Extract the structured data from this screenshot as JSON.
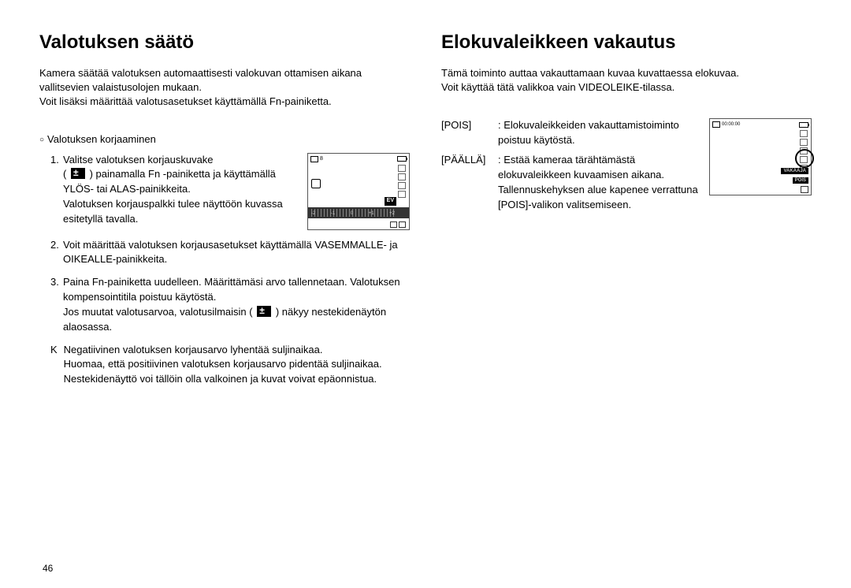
{
  "page_number": "46",
  "colors": {
    "text": "#000000",
    "background": "#ffffff",
    "lcd_border": "#555555",
    "lcd_dark": "#333333"
  },
  "left": {
    "title": "Valotuksen säätö",
    "intro": "Kamera säätää valotuksen automaattisesti valokuvan ottamisen aikana vallitsevien valaistusolojen mukaan.\nVoit lisäksi määrittää valotusasetukset käyttämällä Fn-painiketta.",
    "subhead": "Valotuksen korjaaminen",
    "step1a": "Valitse valotuksen korjauskuvake",
    "step1b": "painamalla Fn -painiketta ja käyttämällä YLÖS- tai ALAS-painikkeita.",
    "step1c": "Valotuksen korjauspalkki tulee näyttöön kuvassa esitetyllä tavalla.",
    "step2": "Voit määrittää valotuksen korjausasetukset käyttämällä VASEMMALLE- ja OIKEALLE-painikkeita.",
    "step3a": "Paina Fn-painiketta uudelleen. Määrittämäsi arvo tallennetaan. Valotuksen kompensointitila poistuu käytöstä.",
    "step3b_pre": "Jos muutat valotusarvoa, valotusilmaisin (",
    "step3b_post": ") näkyy nestekidenäytön alaosassa.",
    "noteK": "Negatiivinen valotuksen korjausarvo lyhentää suljinaikaa.\nHuomaa, että positiivinen valotuksen korjausarvo pidentää suljinaikaa. Nestekidenäyttö voi tällöin olla valkoinen ja kuvat voivat epäonnistua.",
    "lcd": {
      "ev_label": "EV",
      "ticks": [
        "-2",
        "-1",
        "0",
        "+1",
        "+2"
      ],
      "counter": "8"
    }
  },
  "right": {
    "title": "Elokuvaleikkeen vakautus",
    "intro": "Tämä toiminto auttaa vakauttamaan kuvaa kuvattaessa elokuvaa.\nVoit käyttää tätä valikkoa vain VIDEOLEIKE-tilassa.",
    "options": [
      {
        "label": "[POIS]",
        "desc": "Elokuvaleikkeiden vakauttamistoiminto poistuu käytöstä."
      },
      {
        "label": "[PÄÄLLÄ]",
        "desc": "Estää kameraa tärähtämästä elokuvaleikkeen kuvaamisen aikana. Tallennuskehyksen alue kapenee verrattuna [POIS]-valikon valitsemiseen."
      }
    ],
    "lcd": {
      "time": "00:00:00",
      "label1": "VAKAAJA",
      "label2": "POIS"
    }
  }
}
